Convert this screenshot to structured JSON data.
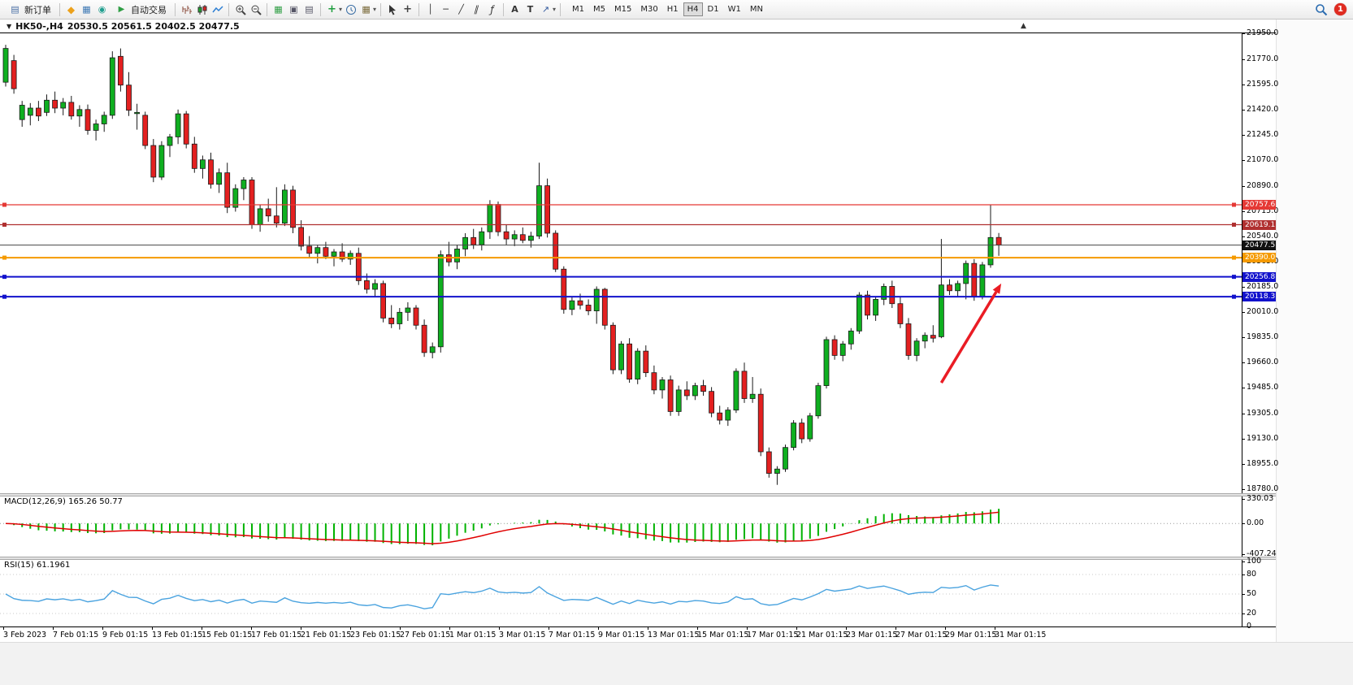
{
  "toolbar": {
    "new_order_label": "新订单",
    "auto_trading_label": "自动交易",
    "timeframes": [
      "M1",
      "M5",
      "M15",
      "M30",
      "H1",
      "H4",
      "D1",
      "W1",
      "MN"
    ],
    "active_timeframe": "H4",
    "notification_count": "1"
  },
  "icons": {
    "new_order": "▤",
    "metaeditor": "◆",
    "charts": "▦",
    "services": "◉",
    "auto_play": "▶",
    "tile": "▦",
    "cascade": "▣",
    "arrange": "▤",
    "indicator_add": "+",
    "template": "▦",
    "caret": "▾",
    "crosshair": "+",
    "vline": "│",
    "hline": "─",
    "trend": "╱",
    "channel": "∥",
    "fibo": "ƒ",
    "text": "A",
    "label": "T",
    "arrows": "↗",
    "symbol_dropdown": "▼",
    "shift_marker": "▲"
  },
  "header": {
    "symbol": "HK50-,H4",
    "ohlc": "20530.5 20561.5 20402.5 20477.5"
  },
  "price_axis": {
    "max": 21950.0,
    "min": 18780.0,
    "labels": [
      "21950.0",
      "21770.0",
      "21595.0",
      "21420.0",
      "21245.0",
      "21070.0",
      "20890.0",
      "20715.0",
      "20540.0",
      "20365.0",
      "20185.0",
      "20010.0",
      "19835.0",
      "19660.0",
      "19485.0",
      "19305.0",
      "19130.0",
      "18955.0",
      "18780.0"
    ]
  },
  "macd_panel": {
    "label": "MACD(12,26,9) 165.26 50.77",
    "max": 330.03,
    "min": -407.24,
    "axis": [
      {
        "label": "330.03",
        "value": 330.03
      },
      {
        "label": "0.00",
        "value": 0
      },
      {
        "label": "-407.24",
        "value": -407.24
      }
    ]
  },
  "rsi_panel": {
    "label": "RSI(15) 61.1961",
    "value": 61.1961,
    "axis": [
      {
        "label": "100",
        "value": 100
      },
      {
        "label": "80",
        "value": 80
      },
      {
        "label": "50",
        "value": 50
      },
      {
        "label": "20",
        "value": 20
      },
      {
        "label": "0",
        "value": 0
      }
    ]
  },
  "time_axis": {
    "labels": [
      "3 Feb 2023",
      "7 Feb 01:15",
      "9 Feb 01:15",
      "13 Feb 01:15",
      "15 Feb 01:15",
      "17 Feb 01:15",
      "21 Feb 01:15",
      "23 Feb 01:15",
      "27 Feb 01:15",
      "1 Mar 01:15",
      "3 Mar 01:15",
      "7 Mar 01:15",
      "9 Mar 01:15",
      "13 Mar 01:15",
      "15 Mar 01:15",
      "17 Mar 01:15",
      "21 Mar 01:15",
      "23 Mar 01:15",
      "27 Mar 01:15",
      "29 Mar 01:15",
      "31 Mar 01:15"
    ]
  },
  "chart_data": {
    "type": "candlestick",
    "symbol": "HK50-",
    "timeframe": "H4",
    "current_bar": {
      "open": 20530.5,
      "high": 20561.5,
      "low": 20402.5,
      "close": 20477.5
    },
    "colors": {
      "up": "#0faf20",
      "down": "#e32020",
      "outline": "#1a1a1a"
    },
    "levels": [
      {
        "price": 20757.6,
        "label": "20757.6",
        "line_color": "#e53935",
        "tag_color": "#e53935",
        "width": 1.2,
        "handles": true
      },
      {
        "price": 20619.1,
        "label": "20619.1",
        "line_color": "#b03030",
        "tag_color": "#b03030",
        "width": 1.2,
        "handles": true
      },
      {
        "price": 20477.5,
        "label": "20477.5",
        "line_color": "#444444",
        "tag_color": "#111111",
        "width": 1,
        "handles": false
      },
      {
        "price": 20390.0,
        "label": "20390.0",
        "line_color": "#f59a00",
        "tag_color": "#f59a00",
        "width": 2,
        "handles": true
      },
      {
        "price": 20256.8,
        "label": "20256.8",
        "line_color": "#1212cc",
        "tag_color": "#1212cc",
        "width": 2,
        "handles": true
      },
      {
        "price": 20118.3,
        "label": "20118.3",
        "line_color": "#1212cc",
        "tag_color": "#1212cc",
        "width": 2,
        "handles": true
      }
    ],
    "candles": [
      [
        21610,
        21870,
        21580,
        21845
      ],
      [
        21760,
        21800,
        21530,
        21565
      ],
      [
        21350,
        21480,
        21300,
        21450
      ],
      [
        21380,
        21465,
        21310,
        21430
      ],
      [
        21430,
        21480,
        21340,
        21375
      ],
      [
        21400,
        21525,
        21375,
        21485
      ],
      [
        21485,
        21545,
        21395,
        21430
      ],
      [
        21430,
        21500,
        21380,
        21470
      ],
      [
        21470,
        21515,
        21350,
        21375
      ],
      [
        21375,
        21450,
        21300,
        21420
      ],
      [
        21420,
        21455,
        21245,
        21275
      ],
      [
        21275,
        21350,
        21205,
        21320
      ],
      [
        21320,
        21405,
        21265,
        21380
      ],
      [
        21380,
        21825,
        21355,
        21780
      ],
      [
        21790,
        21845,
        21545,
        21590
      ],
      [
        21590,
        21680,
        21375,
        21415
      ],
      [
        21400,
        21460,
        21280,
        21400
      ],
      [
        21380,
        21405,
        21145,
        21170
      ],
      [
        21170,
        21215,
        20915,
        20950
      ],
      [
        20950,
        21200,
        20930,
        21170
      ],
      [
        21170,
        21250,
        21090,
        21230
      ],
      [
        21230,
        21420,
        21180,
        21390
      ],
      [
        21390,
        21410,
        21150,
        21180
      ],
      [
        21180,
        21230,
        20980,
        21010
      ],
      [
        21010,
        21100,
        20940,
        21070
      ],
      [
        21070,
        21120,
        20870,
        20900
      ],
      [
        20900,
        21010,
        20840,
        20980
      ],
      [
        20980,
        21050,
        20700,
        20740
      ],
      [
        20740,
        20900,
        20710,
        20870
      ],
      [
        20870,
        20950,
        20790,
        20930
      ],
      [
        20930,
        20950,
        20590,
        20620
      ],
      [
        20620,
        20760,
        20570,
        20730
      ],
      [
        20730,
        20800,
        20640,
        20680
      ],
      [
        20680,
        20880,
        20600,
        20630
      ],
      [
        20630,
        20900,
        20610,
        20860
      ],
      [
        20860,
        20890,
        20560,
        20600
      ],
      [
        20600,
        20650,
        20440,
        20470
      ],
      [
        20470,
        20540,
        20390,
        20420
      ],
      [
        20420,
        20480,
        20350,
        20460
      ],
      [
        20460,
        20500,
        20380,
        20400
      ],
      [
        20400,
        20450,
        20330,
        20430
      ],
      [
        20430,
        20490,
        20360,
        20380
      ],
      [
        20380,
        20440,
        20340,
        20420
      ],
      [
        20420,
        20460,
        20200,
        20230
      ],
      [
        20230,
        20280,
        20140,
        20170
      ],
      [
        20170,
        20240,
        20120,
        20210
      ],
      [
        20210,
        20230,
        19940,
        19970
      ],
      [
        19970,
        20060,
        19900,
        19930
      ],
      [
        19930,
        20040,
        19890,
        20010
      ],
      [
        20010,
        20080,
        19950,
        20040
      ],
      [
        20040,
        20060,
        19890,
        19920
      ],
      [
        19920,
        19960,
        19700,
        19730
      ],
      [
        19730,
        19800,
        19690,
        19770
      ],
      [
        19770,
        20440,
        19730,
        20410
      ],
      [
        20410,
        20500,
        20330,
        20360
      ],
      [
        20360,
        20480,
        20310,
        20450
      ],
      [
        20450,
        20560,
        20400,
        20530
      ],
      [
        20530,
        20590,
        20450,
        20480
      ],
      [
        20480,
        20600,
        20440,
        20570
      ],
      [
        20570,
        20790,
        20520,
        20760
      ],
      [
        20760,
        20780,
        20540,
        20570
      ],
      [
        20570,
        20620,
        20480,
        20520
      ],
      [
        20520,
        20580,
        20470,
        20550
      ],
      [
        20550,
        20600,
        20490,
        20510
      ],
      [
        20510,
        20570,
        20460,
        20540
      ],
      [
        20540,
        21050,
        20520,
        20890
      ],
      [
        20890,
        20940,
        20530,
        20560
      ],
      [
        20560,
        20580,
        20290,
        20310
      ],
      [
        20310,
        20330,
        20000,
        20030
      ],
      [
        20030,
        20120,
        19990,
        20090
      ],
      [
        20090,
        20140,
        20030,
        20060
      ],
      [
        20060,
        20100,
        19990,
        20020
      ],
      [
        20020,
        20190,
        19930,
        20170
      ],
      [
        20170,
        20180,
        19890,
        19920
      ],
      [
        19920,
        19940,
        19580,
        19610
      ],
      [
        19610,
        19810,
        19580,
        19790
      ],
      [
        19790,
        19830,
        19520,
        19545
      ],
      [
        19545,
        19760,
        19510,
        19740
      ],
      [
        19740,
        19780,
        19560,
        19590
      ],
      [
        19590,
        19640,
        19440,
        19470
      ],
      [
        19470,
        19560,
        19410,
        19540
      ],
      [
        19540,
        19570,
        19290,
        19320
      ],
      [
        19320,
        19500,
        19290,
        19470
      ],
      [
        19470,
        19530,
        19400,
        19430
      ],
      [
        19430,
        19520,
        19400,
        19500
      ],
      [
        19500,
        19540,
        19430,
        19460
      ],
      [
        19460,
        19490,
        19280,
        19310
      ],
      [
        19310,
        19360,
        19230,
        19260
      ],
      [
        19260,
        19350,
        19220,
        19330
      ],
      [
        19330,
        19620,
        19310,
        19600
      ],
      [
        19600,
        19660,
        19380,
        19410
      ],
      [
        19410,
        19560,
        19380,
        19440
      ],
      [
        19440,
        19480,
        19010,
        19040
      ],
      [
        19040,
        19070,
        18860,
        18890
      ],
      [
        18890,
        18940,
        18810,
        18920
      ],
      [
        18920,
        19090,
        18900,
        19070
      ],
      [
        19070,
        19260,
        19050,
        19240
      ],
      [
        19240,
        19270,
        19100,
        19130
      ],
      [
        19130,
        19310,
        19110,
        19290
      ],
      [
        19290,
        19520,
        19270,
        19500
      ],
      [
        19500,
        19840,
        19480,
        19820
      ],
      [
        19820,
        19850,
        19680,
        19710
      ],
      [
        19710,
        19810,
        19670,
        19790
      ],
      [
        19790,
        19900,
        19750,
        19880
      ],
      [
        19880,
        20150,
        19860,
        20130
      ],
      [
        20130,
        20160,
        19960,
        19990
      ],
      [
        19990,
        20120,
        19950,
        20100
      ],
      [
        20100,
        20210,
        20060,
        20190
      ],
      [
        20190,
        20230,
        20040,
        20070
      ],
      [
        20070,
        20120,
        19900,
        19930
      ],
      [
        19930,
        19970,
        19680,
        19710
      ],
      [
        19710,
        19830,
        19670,
        19810
      ],
      [
        19810,
        19870,
        19760,
        19850
      ],
      [
        19850,
        19920,
        19800,
        19830
      ],
      [
        19840,
        20520,
        19830,
        20200
      ],
      [
        20200,
        20240,
        20130,
        20160
      ],
      [
        20160,
        20230,
        20120,
        20210
      ],
      [
        20210,
        20370,
        20100,
        20350
      ],
      [
        20350,
        20380,
        20090,
        20120
      ],
      [
        20120,
        20360,
        20100,
        20340
      ],
      [
        20340,
        20760,
        20320,
        20530
      ],
      [
        20530.5,
        20561.5,
        20402.5,
        20477.5
      ]
    ],
    "macd": {
      "params": "12,26,9",
      "value": 165.26,
      "signal": 50.77,
      "histogram_color": "#00b200",
      "signal_color": "#e00000"
    },
    "rsi": {
      "period": 15,
      "value": 61.1961,
      "color": "#4aa3df",
      "dotted_levels": [
        80,
        50,
        20
      ]
    },
    "arrow": {
      "from": {
        "bar": 114,
        "price": 19520
      },
      "to": {
        "bar": 121.3,
        "price": 20210
      },
      "color": "#ea1c24",
      "width": 3.5
    }
  }
}
